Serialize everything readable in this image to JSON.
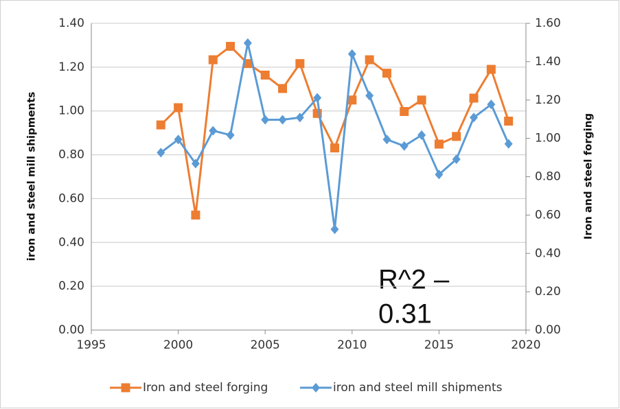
{
  "chart_data": {
    "type": "line",
    "x": [
      1999,
      2000,
      2001,
      2002,
      2003,
      2004,
      2005,
      2006,
      2007,
      2008,
      2009,
      2010,
      2011,
      2012,
      2013,
      2014,
      2015,
      2016,
      2017,
      2018,
      2019
    ],
    "series": [
      {
        "name": "Iron and steel forging",
        "color": "#ed7d31",
        "marker": "square",
        "axis": "y2",
        "values": [
          1.07,
          1.16,
          0.6,
          1.41,
          1.48,
          1.39,
          1.33,
          1.26,
          1.39,
          1.13,
          0.95,
          1.2,
          1.41,
          1.34,
          1.14,
          1.2,
          0.97,
          1.01,
          1.21,
          1.36,
          1.09
        ]
      },
      {
        "name": "iron and steel mill shipments",
        "color": "#5b9bd5",
        "marker": "diamond",
        "values": [
          0.81,
          0.87,
          0.76,
          0.91,
          0.89,
          1.31,
          0.96,
          0.96,
          0.97,
          1.06,
          0.46,
          1.26,
          1.07,
          0.87,
          0.84,
          0.89,
          0.71,
          0.78,
          0.97,
          1.03,
          0.85
        ]
      }
    ],
    "y_label": "iron and steel mill shipments",
    "y2_label": "Iron and steel forging",
    "annotation": [
      "R^2 –",
      "0.31"
    ],
    "xlim": [
      1995,
      2020
    ],
    "xticks": [
      1995,
      2000,
      2005,
      2010,
      2015,
      2020
    ],
    "ylim": [
      0,
      1.4
    ],
    "yticks": [
      {
        "value": 0,
        "label": "0.00"
      },
      {
        "value": 0.2,
        "label": "0.20"
      },
      {
        "value": 0.4,
        "label": "0.40"
      },
      {
        "value": 0.6,
        "label": "0.60"
      },
      {
        "value": 0.8,
        "label": "0.80"
      },
      {
        "value": 1.0,
        "label": "1.00"
      },
      {
        "value": 1.2,
        "label": "1.20"
      },
      {
        "value": 1.4,
        "label": "1.40"
      }
    ],
    "y2lim": [
      0,
      1.6
    ],
    "y2ticks": [
      {
        "value": 0,
        "label": "0.00"
      },
      {
        "value": 0.2,
        "label": "0.20"
      },
      {
        "value": 0.4,
        "label": "0.40"
      },
      {
        "value": 0.6,
        "label": "0.60"
      },
      {
        "value": 0.8,
        "label": "0.80"
      },
      {
        "value": 1.0,
        "label": "1.00"
      },
      {
        "value": 1.2,
        "label": "1.20"
      },
      {
        "value": 1.4,
        "label": "1.40"
      },
      {
        "value": 1.6,
        "label": "1.60"
      }
    ],
    "grid": true,
    "legend": "bottom"
  }
}
